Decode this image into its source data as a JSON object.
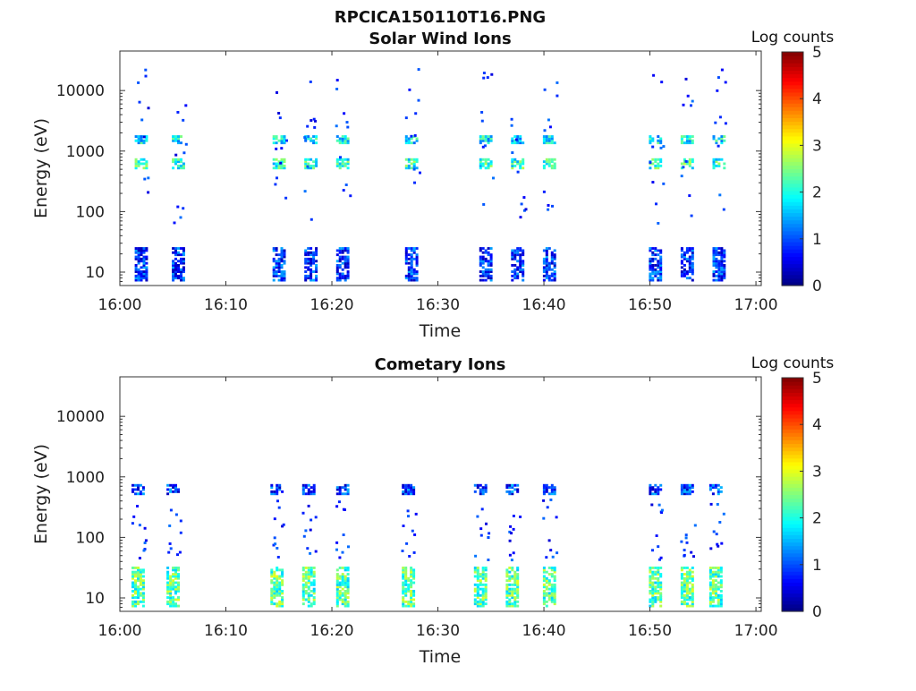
{
  "figure_title": "RPCICA150110T16.PNG",
  "chart_data": [
    {
      "type": "heatmap",
      "title": "Solar Wind Ions",
      "xlabel": "Time",
      "ylabel": "Energy (eV)",
      "x_tick_labels": [
        "16:00",
        "16:10",
        "16:20",
        "16:30",
        "16:40",
        "16:50",
        "17:00"
      ],
      "x_ticks_min": [
        0,
        10,
        20,
        30,
        40,
        50,
        60
      ],
      "xlim_min": [
        0,
        60.5
      ],
      "y_scale": "log",
      "ylim": [
        6,
        45000
      ],
      "y_tick_labels": [
        "10",
        "100",
        "1000",
        "10000"
      ],
      "y_tick_values": [
        10,
        100,
        1000,
        10000
      ],
      "colorbar": {
        "label": "Log counts",
        "range": [
          0,
          5
        ],
        "tick_labels": [
          "0",
          "1",
          "2",
          "3",
          "4",
          "5"
        ],
        "colormap": "jet"
      },
      "bursts_min": [
        2,
        5.5,
        15,
        18,
        21,
        27.5,
        34.5,
        37.5,
        40.5,
        50.5,
        53.5,
        56.5
      ],
      "bands": [
        {
          "energy_range_eV": [
            500,
            700
          ],
          "log_counts": 2.1
        },
        {
          "energy_range_eV": [
            1300,
            1700
          ],
          "log_counts": 1.8
        },
        {
          "energy_range_eV": [
            7,
            25
          ],
          "log_counts": 0.8
        }
      ],
      "scatter_energy_range_eV": [
        60,
        22000
      ]
    },
    {
      "type": "heatmap",
      "title": "Cometary Ions",
      "xlabel": "Time",
      "ylabel": "Energy (eV)",
      "x_tick_labels": [
        "16:00",
        "16:10",
        "16:20",
        "16:30",
        "16:40",
        "16:50",
        "17:00"
      ],
      "x_ticks_min": [
        0,
        10,
        20,
        30,
        40,
        50,
        60
      ],
      "xlim_min": [
        0,
        60.5
      ],
      "y_scale": "log",
      "ylim": [
        6,
        45000
      ],
      "y_tick_labels": [
        "10",
        "100",
        "1000",
        "10000"
      ],
      "y_tick_values": [
        10,
        100,
        1000,
        10000
      ],
      "colorbar": {
        "label": "Log counts",
        "range": [
          0,
          5
        ],
        "tick_labels": [
          "0",
          "1",
          "2",
          "3",
          "4",
          "5"
        ],
        "colormap": "jet"
      },
      "bursts_min": [
        1.7,
        5,
        14.8,
        17.8,
        21,
        27.2,
        34,
        37,
        40.5,
        50.5,
        53.5,
        56.2
      ],
      "bands": [
        {
          "energy_range_eV": [
            7,
            30
          ],
          "log_counts": 2.3
        },
        {
          "energy_range_eV": [
            500,
            700
          ],
          "log_counts": 0.9
        }
      ],
      "scatter_energy_range_eV": [
        40,
        400
      ]
    }
  ]
}
